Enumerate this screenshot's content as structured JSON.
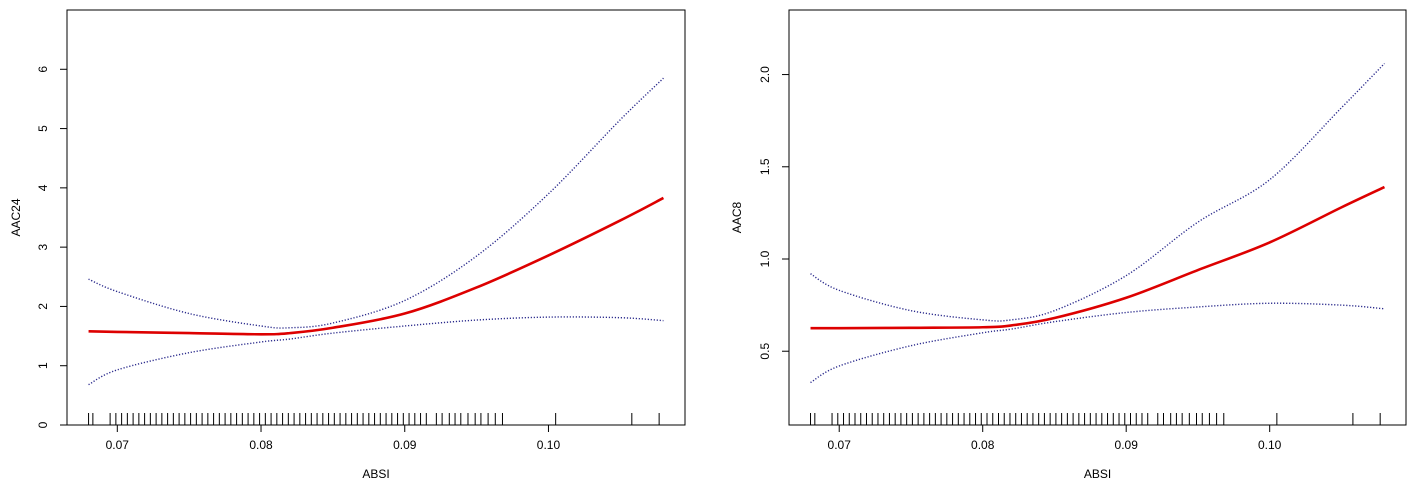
{
  "chart_data": [
    {
      "type": "line",
      "xlabel": "ABSI",
      "ylabel": "AAC24",
      "xlim": [
        0.0665,
        0.1095
      ],
      "ylim": [
        0,
        7
      ],
      "xticks": [
        0.07,
        0.08,
        0.09,
        0.1
      ],
      "xtick_labels": [
        "0.07",
        "0.08",
        "0.09",
        "0.10"
      ],
      "yticks": [
        0,
        1,
        2,
        3,
        4,
        5,
        6
      ],
      "ytick_labels": [
        "0",
        "1",
        "2",
        "3",
        "4",
        "5",
        "6"
      ],
      "grid": false,
      "legend": "none",
      "rug_baseline": 0,
      "series": [
        {
          "role": "fit",
          "style": "solid",
          "color": "#dd0000",
          "x": [
            0.068,
            0.07,
            0.075,
            0.08,
            0.082,
            0.085,
            0.09,
            0.095,
            0.1,
            0.105,
            0.108
          ],
          "y": [
            1.58,
            1.57,
            1.55,
            1.53,
            1.55,
            1.64,
            1.88,
            2.32,
            2.86,
            3.45,
            3.83
          ]
        },
        {
          "role": "upper-ci",
          "style": "dotted",
          "color": "#2a2a8c",
          "x": [
            0.068,
            0.07,
            0.075,
            0.08,
            0.082,
            0.085,
            0.09,
            0.095,
            0.1,
            0.105,
            0.108
          ],
          "y": [
            2.46,
            2.25,
            1.88,
            1.67,
            1.64,
            1.72,
            2.1,
            2.85,
            3.9,
            5.15,
            5.85
          ]
        },
        {
          "role": "lower-ci",
          "style": "dotted",
          "color": "#2a2a8c",
          "x": [
            0.068,
            0.07,
            0.075,
            0.08,
            0.082,
            0.085,
            0.09,
            0.095,
            0.1,
            0.105,
            0.108
          ],
          "y": [
            0.68,
            0.93,
            1.22,
            1.4,
            1.45,
            1.55,
            1.67,
            1.77,
            1.82,
            1.81,
            1.76
          ]
        }
      ],
      "rug": [
        0.068,
        0.0683,
        0.0695,
        0.0699,
        0.0703,
        0.0707,
        0.0711,
        0.0715,
        0.0719,
        0.0723,
        0.0727,
        0.0731,
        0.0735,
        0.0739,
        0.0743,
        0.0747,
        0.0751,
        0.0755,
        0.0759,
        0.0763,
        0.0767,
        0.0771,
        0.0775,
        0.0779,
        0.0783,
        0.0787,
        0.0791,
        0.0795,
        0.0799,
        0.0803,
        0.0807,
        0.0811,
        0.0815,
        0.0819,
        0.0823,
        0.0827,
        0.0831,
        0.0835,
        0.0839,
        0.0843,
        0.0847,
        0.0851,
        0.0855,
        0.0859,
        0.0863,
        0.0867,
        0.0871,
        0.0875,
        0.0879,
        0.0883,
        0.0887,
        0.0891,
        0.0895,
        0.0899,
        0.0903,
        0.0907,
        0.0911,
        0.0915,
        0.0922,
        0.0926,
        0.0931,
        0.0935,
        0.0939,
        0.0944,
        0.0949,
        0.0953,
        0.0958,
        0.0963,
        0.0968,
        0.1005,
        0.1058,
        0.1077
      ]
    },
    {
      "type": "line",
      "xlabel": "ABSI",
      "ylabel": "AAC8",
      "xlim": [
        0.0665,
        0.1095
      ],
      "ylim": [
        0.1,
        2.35
      ],
      "xticks": [
        0.07,
        0.08,
        0.09,
        0.1
      ],
      "xtick_labels": [
        "0.07",
        "0.08",
        "0.09",
        "0.10"
      ],
      "yticks": [
        0.5,
        1.0,
        1.5,
        2.0
      ],
      "ytick_labels": [
        "0.5",
        "1.0",
        "1.5",
        "2.0"
      ],
      "grid": false,
      "legend": "none",
      "rug_baseline": 0.1,
      "series": [
        {
          "role": "fit",
          "style": "solid",
          "color": "#dd0000",
          "x": [
            0.068,
            0.07,
            0.075,
            0.08,
            0.082,
            0.085,
            0.09,
            0.095,
            0.1,
            0.105,
            0.108
          ],
          "y": [
            0.625,
            0.625,
            0.627,
            0.63,
            0.64,
            0.68,
            0.79,
            0.94,
            1.09,
            1.28,
            1.39
          ]
        },
        {
          "role": "upper-ci",
          "style": "dotted",
          "color": "#2a2a8c",
          "x": [
            0.068,
            0.07,
            0.075,
            0.08,
            0.082,
            0.085,
            0.09,
            0.095,
            0.1,
            0.105,
            0.108
          ],
          "y": [
            0.92,
            0.83,
            0.72,
            0.67,
            0.67,
            0.72,
            0.91,
            1.2,
            1.43,
            1.82,
            2.06
          ]
        },
        {
          "role": "lower-ci",
          "style": "dotted",
          "color": "#2a2a8c",
          "x": [
            0.068,
            0.07,
            0.075,
            0.08,
            0.082,
            0.085,
            0.09,
            0.095,
            0.1,
            0.105,
            0.108
          ],
          "y": [
            0.33,
            0.42,
            0.53,
            0.6,
            0.62,
            0.66,
            0.71,
            0.74,
            0.76,
            0.75,
            0.73
          ]
        }
      ],
      "rug": [
        0.068,
        0.0683,
        0.0695,
        0.0699,
        0.0703,
        0.0707,
        0.0711,
        0.0715,
        0.0719,
        0.0723,
        0.0727,
        0.0731,
        0.0735,
        0.0739,
        0.0743,
        0.0747,
        0.0751,
        0.0755,
        0.0759,
        0.0763,
        0.0767,
        0.0771,
        0.0775,
        0.0779,
        0.0783,
        0.0787,
        0.0791,
        0.0795,
        0.0799,
        0.0803,
        0.0807,
        0.0811,
        0.0815,
        0.0819,
        0.0823,
        0.0827,
        0.0831,
        0.0835,
        0.0839,
        0.0843,
        0.0847,
        0.0851,
        0.0855,
        0.0859,
        0.0863,
        0.0867,
        0.0871,
        0.0875,
        0.0879,
        0.0883,
        0.0887,
        0.0891,
        0.0895,
        0.0899,
        0.0903,
        0.0907,
        0.0911,
        0.0915,
        0.0922,
        0.0926,
        0.0931,
        0.0935,
        0.0939,
        0.0944,
        0.0949,
        0.0953,
        0.0958,
        0.0963,
        0.0968,
        0.1005,
        0.1058,
        0.1077
      ]
    }
  ]
}
